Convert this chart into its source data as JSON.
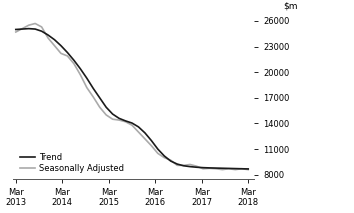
{
  "title": "",
  "ylim": [
    7500,
    27500
  ],
  "yticks": [
    8000,
    11000,
    14000,
    17000,
    20000,
    23000,
    26000
  ],
  "xtick_labels": [
    "Mar\n2013",
    "Mar\n2014",
    "Mar\n2015",
    "Mar\n2016",
    "Mar\n2017",
    "Mar\n2018"
  ],
  "xtick_positions": [
    0,
    4,
    8,
    12,
    16,
    20
  ],
  "trend": [
    25000,
    25050,
    25100,
    25050,
    24800,
    24350,
    23800,
    23100,
    22300,
    21400,
    20400,
    19300,
    18100,
    17000,
    15900,
    15100,
    14600,
    14300,
    14050,
    13600,
    12900,
    12000,
    11000,
    10200,
    9600,
    9250,
    9050,
    8950,
    8880,
    8830,
    8800,
    8780,
    8760,
    8740,
    8720,
    8700,
    8680
  ],
  "seasonal": [
    24700,
    25100,
    25500,
    25700,
    25300,
    24000,
    23100,
    22200,
    21900,
    21000,
    19700,
    18200,
    17100,
    15900,
    15000,
    14500,
    14400,
    14200,
    13800,
    13000,
    12200,
    11400,
    10500,
    10000,
    9700,
    9100,
    9100,
    9200,
    9000,
    8700,
    8750,
    8700,
    8600,
    8700,
    8600,
    8700,
    8600
  ],
  "trend_color": "#1a1a1a",
  "seasonal_color": "#aaaaaa",
  "trend_lw": 1.2,
  "seasonal_lw": 1.2,
  "legend_labels": [
    "Trend",
    "Seasonally Adjusted"
  ],
  "background_color": "#ffffff",
  "n_points": 37
}
